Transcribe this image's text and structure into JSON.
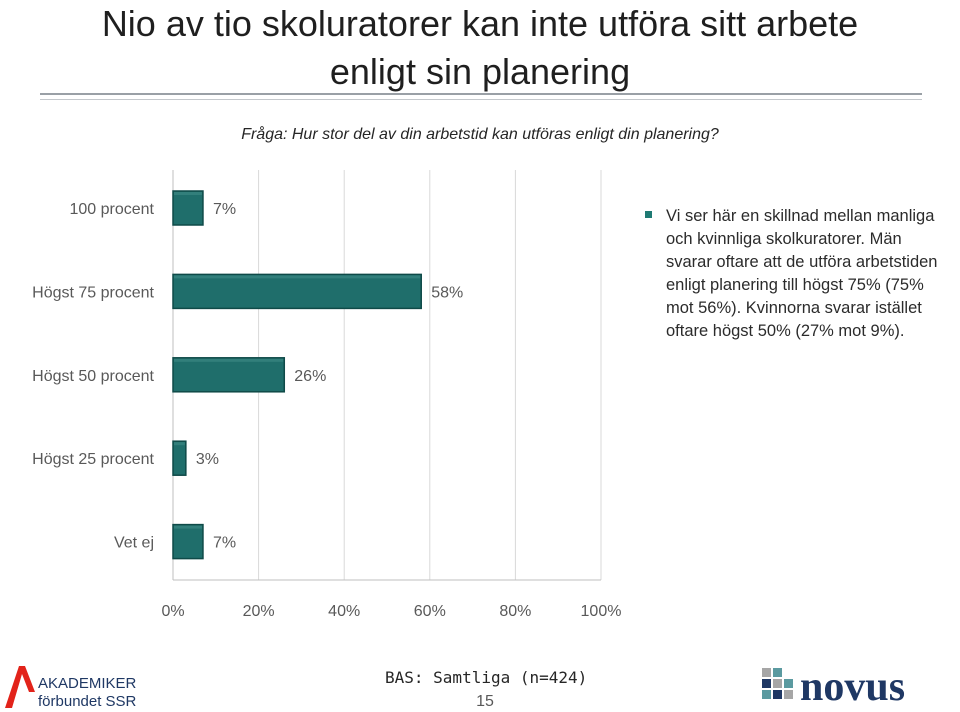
{
  "slide": {
    "title_line1": "Nio av tio skoluratorer kan inte utföra sitt arbete",
    "title_line2": "enligt sin planering",
    "question": "Fråga: Hur stor del av din arbetstid kan utföras enligt din planering?",
    "bullet_text": "Vi ser här en skillnad mellan manliga och kvinnliga skolkuratorer. Män svarar oftare att de utföra arbetstiden enligt planering till högst 75%  (75% mot 56%). Kvinnorna svarar  istället oftare högst 50% (27% mot 9%).",
    "footer_bas": "BAS: Samtliga (n=424)",
    "page_number": "15",
    "logo_left_line1": "AKADEMIKER",
    "logo_left_line2": "förbundet SSR",
    "logo_right": "novus"
  },
  "colors": {
    "bar": "#1f6e6b",
    "bar_edge": "#0f4a48",
    "grid": "#d9d9d9",
    "axis": "#bfbfbf",
    "label": "#595959",
    "logo_red": "#e2231a",
    "logo_blue": "#1f3864",
    "novus_navy": "#1f3864",
    "novus_teal": "#5b9aa0",
    "novus_gray": "#a6a6a6"
  },
  "chart_data": {
    "type": "bar",
    "orientation": "horizontal",
    "categories": [
      "100 procent",
      "Högst 75 procent",
      "Högst 50 procent",
      "Högst 25 procent",
      "Vet ej"
    ],
    "values": [
      7,
      58,
      26,
      3,
      7
    ],
    "data_labels": [
      "7%",
      "58%",
      "26%",
      "3%",
      "7%"
    ],
    "xlim": [
      0,
      100
    ],
    "xticks": [
      0,
      20,
      40,
      60,
      80,
      100
    ],
    "xtick_labels": [
      "0%",
      "20%",
      "40%",
      "60%",
      "80%",
      "100%"
    ],
    "grid": true,
    "legend": "none"
  }
}
